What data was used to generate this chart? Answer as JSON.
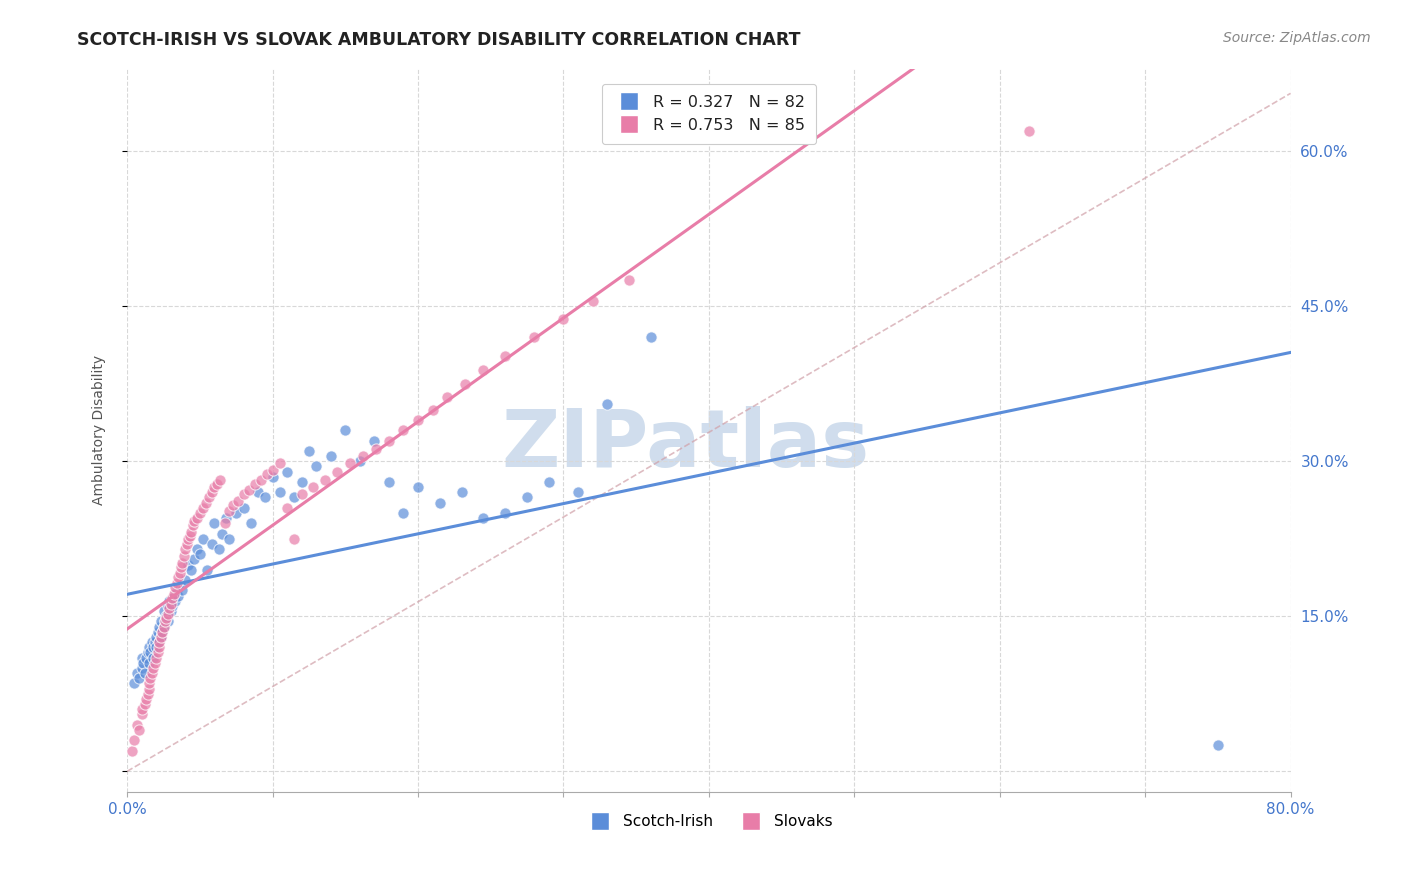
{
  "title": "SCOTCH-IRISH VS SLOVAK AMBULATORY DISABILITY CORRELATION CHART",
  "source": "Source: ZipAtlas.com",
  "ylabel": "Ambulatory Disability",
  "xmin": 0.0,
  "xmax": 0.8,
  "ymin": -0.02,
  "ymax": 0.68,
  "yticks": [
    0.0,
    0.15,
    0.3,
    0.45,
    0.6
  ],
  "right_ytick_labels": [
    "",
    "15.0%",
    "30.0%",
    "45.0%",
    "60.0%"
  ],
  "scotch_irish_color": "#5b8dd9",
  "slovak_color": "#e87da8",
  "background_color": "#ffffff",
  "grid_color": "#d8d8d8",
  "tick_color": "#4477cc",
  "title_fontsize": 12.5,
  "axis_label_fontsize": 10,
  "legend_fontsize": 11.5,
  "source_fontsize": 10,
  "watermark_text": "ZIPatlas",
  "watermark_color": "#c8d8ea",
  "watermark_fontsize": 58,
  "diag_line_color": "#d0a0a8",
  "scotch_irish_x": [
    0.005,
    0.007,
    0.008,
    0.01,
    0.01,
    0.011,
    0.012,
    0.013,
    0.014,
    0.015,
    0.015,
    0.016,
    0.017,
    0.018,
    0.018,
    0.019,
    0.02,
    0.02,
    0.021,
    0.022,
    0.022,
    0.023,
    0.023,
    0.024,
    0.025,
    0.025,
    0.026,
    0.027,
    0.028,
    0.028,
    0.029,
    0.03,
    0.031,
    0.032,
    0.033,
    0.034,
    0.035,
    0.036,
    0.038,
    0.04,
    0.042,
    0.044,
    0.046,
    0.048,
    0.05,
    0.052,
    0.055,
    0.058,
    0.06,
    0.063,
    0.065,
    0.068,
    0.07,
    0.075,
    0.08,
    0.085,
    0.09,
    0.095,
    0.1,
    0.105,
    0.11,
    0.115,
    0.12,
    0.125,
    0.13,
    0.14,
    0.15,
    0.16,
    0.17,
    0.18,
    0.19,
    0.2,
    0.215,
    0.23,
    0.245,
    0.26,
    0.275,
    0.29,
    0.31,
    0.33,
    0.36,
    0.75
  ],
  "scotch_irish_y": [
    0.085,
    0.095,
    0.09,
    0.1,
    0.11,
    0.105,
    0.095,
    0.11,
    0.115,
    0.105,
    0.12,
    0.115,
    0.125,
    0.11,
    0.12,
    0.125,
    0.13,
    0.12,
    0.135,
    0.125,
    0.14,
    0.13,
    0.145,
    0.135,
    0.14,
    0.155,
    0.145,
    0.15,
    0.16,
    0.145,
    0.165,
    0.155,
    0.16,
    0.17,
    0.165,
    0.175,
    0.17,
    0.18,
    0.175,
    0.185,
    0.2,
    0.195,
    0.205,
    0.215,
    0.21,
    0.225,
    0.195,
    0.22,
    0.24,
    0.215,
    0.23,
    0.245,
    0.225,
    0.25,
    0.255,
    0.24,
    0.27,
    0.265,
    0.285,
    0.27,
    0.29,
    0.265,
    0.28,
    0.31,
    0.295,
    0.305,
    0.33,
    0.3,
    0.32,
    0.28,
    0.25,
    0.275,
    0.26,
    0.27,
    0.245,
    0.25,
    0.265,
    0.28,
    0.27,
    0.355,
    0.42,
    0.025
  ],
  "slovak_x": [
    0.003,
    0.005,
    0.007,
    0.008,
    0.01,
    0.01,
    0.012,
    0.013,
    0.014,
    0.015,
    0.015,
    0.016,
    0.017,
    0.018,
    0.019,
    0.02,
    0.021,
    0.022,
    0.022,
    0.023,
    0.024,
    0.025,
    0.026,
    0.027,
    0.028,
    0.029,
    0.03,
    0.031,
    0.032,
    0.033,
    0.034,
    0.035,
    0.036,
    0.037,
    0.038,
    0.039,
    0.04,
    0.041,
    0.042,
    0.043,
    0.044,
    0.045,
    0.046,
    0.048,
    0.05,
    0.052,
    0.054,
    0.056,
    0.058,
    0.06,
    0.062,
    0.064,
    0.067,
    0.07,
    0.073,
    0.076,
    0.08,
    0.084,
    0.088,
    0.092,
    0.096,
    0.1,
    0.105,
    0.11,
    0.115,
    0.12,
    0.128,
    0.136,
    0.144,
    0.153,
    0.162,
    0.171,
    0.18,
    0.19,
    0.2,
    0.21,
    0.22,
    0.232,
    0.245,
    0.26,
    0.28,
    0.3,
    0.32,
    0.345,
    0.62
  ],
  "slovak_y": [
    0.02,
    0.03,
    0.045,
    0.04,
    0.055,
    0.06,
    0.065,
    0.07,
    0.075,
    0.08,
    0.085,
    0.09,
    0.095,
    0.1,
    0.105,
    0.11,
    0.115,
    0.12,
    0.125,
    0.13,
    0.135,
    0.14,
    0.145,
    0.148,
    0.152,
    0.158,
    0.162,
    0.168,
    0.172,
    0.178,
    0.182,
    0.188,
    0.192,
    0.198,
    0.202,
    0.208,
    0.215,
    0.22,
    0.225,
    0.228,
    0.232,
    0.238,
    0.242,
    0.245,
    0.25,
    0.255,
    0.26,
    0.265,
    0.27,
    0.275,
    0.278,
    0.282,
    0.24,
    0.252,
    0.258,
    0.262,
    0.268,
    0.272,
    0.278,
    0.282,
    0.288,
    0.292,
    0.298,
    0.255,
    0.225,
    0.268,
    0.275,
    0.282,
    0.29,
    0.298,
    0.305,
    0.312,
    0.32,
    0.33,
    0.34,
    0.35,
    0.362,
    0.375,
    0.388,
    0.402,
    0.42,
    0.438,
    0.455,
    0.475,
    0.62
  ]
}
